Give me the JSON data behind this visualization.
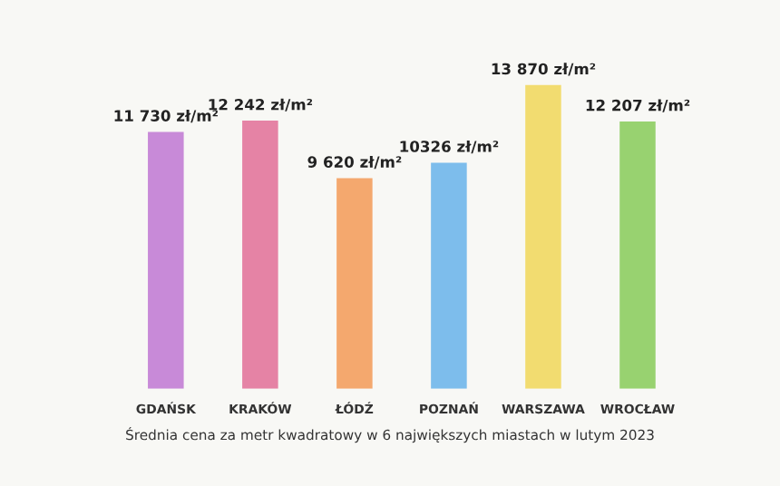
{
  "chart_data": {
    "type": "bar",
    "categories": [
      "GDAŃSK",
      "KRAKÓW",
      "ŁÓDŹ",
      "POZNAŃ",
      "WARSZAWA",
      "WROCŁAW"
    ],
    "values": [
      11730,
      12242,
      9620,
      10326,
      13870,
      12207
    ],
    "value_labels": [
      "11 730 zł/m²",
      "12 242 zł/m²",
      "9 620 zł/m²",
      "10326 zł/m²",
      "13 870 zł/m²",
      "12 207 zł/m²"
    ],
    "colors": [
      "#c88ad8",
      "#e583a5",
      "#f4a86e",
      "#7dbdec",
      "#f2dc70",
      "#98d270"
    ],
    "annotations": [
      "Średnia cena za metr kwadratowy w 6 największych miastach w lutym 2023"
    ]
  }
}
